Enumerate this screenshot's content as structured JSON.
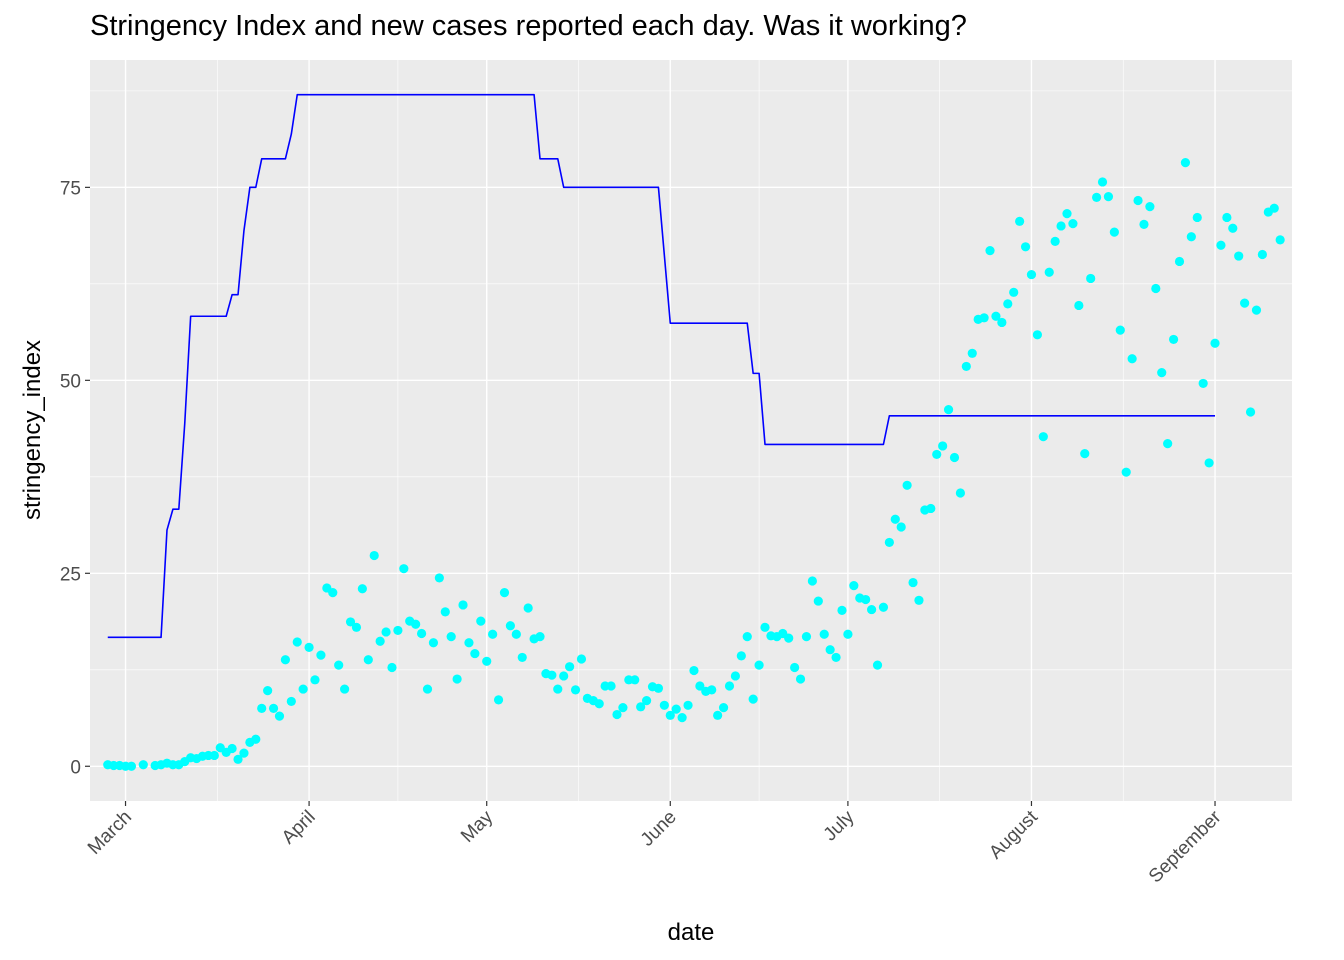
{
  "chart_data": {
    "type": "line",
    "title": "Stringency Index and new cases reported each day. Was it working?",
    "xlabel": "date",
    "ylabel": "stringency_index",
    "x_type": "date",
    "xlim": [
      "2020-02-24",
      "2020-09-14"
    ],
    "ylim": [
      -4.5,
      91.5
    ],
    "y_ticks": [
      0,
      25,
      50,
      75
    ],
    "x_ticks": [
      {
        "date": "2020-03-01",
        "label": "March"
      },
      {
        "date": "2020-04-01",
        "label": "April"
      },
      {
        "date": "2020-05-01",
        "label": "May"
      },
      {
        "date": "2020-06-01",
        "label": "June"
      },
      {
        "date": "2020-07-01",
        "label": "July"
      },
      {
        "date": "2020-08-01",
        "label": "August"
      },
      {
        "date": "2020-09-01",
        "label": "September"
      }
    ],
    "grid": true,
    "background": "#ebebeb",
    "legend": "none",
    "series": [
      {
        "kind": "line",
        "color": "#0000ff",
        "points": [
          [
            "2020-02-27",
            16.7
          ],
          [
            "2020-03-07",
            16.7
          ],
          [
            "2020-03-08",
            30.6
          ],
          [
            "2020-03-09",
            33.3
          ],
          [
            "2020-03-10",
            33.3
          ],
          [
            "2020-03-11",
            44.4
          ],
          [
            "2020-03-12",
            58.3
          ],
          [
            "2020-03-18",
            58.3
          ],
          [
            "2020-03-19",
            61.1
          ],
          [
            "2020-03-20",
            61.1
          ],
          [
            "2020-03-21",
            69.4
          ],
          [
            "2020-03-22",
            75.0
          ],
          [
            "2020-03-23",
            75.0
          ],
          [
            "2020-03-24",
            78.7
          ],
          [
            "2020-03-28",
            78.7
          ],
          [
            "2020-03-29",
            81.9
          ],
          [
            "2020-03-30",
            87.0
          ],
          [
            "2020-05-09",
            87.0
          ],
          [
            "2020-05-10",
            78.7
          ],
          [
            "2020-05-13",
            78.7
          ],
          [
            "2020-05-14",
            75.0
          ],
          [
            "2020-05-30",
            75.0
          ],
          [
            "2020-06-01",
            57.4
          ],
          [
            "2020-06-14",
            57.4
          ],
          [
            "2020-06-15",
            50.9
          ],
          [
            "2020-06-16",
            50.9
          ],
          [
            "2020-06-17",
            41.7
          ],
          [
            "2020-07-07",
            41.7
          ],
          [
            "2020-07-08",
            45.4
          ],
          [
            "2020-09-01",
            45.4
          ]
        ]
      },
      {
        "kind": "points",
        "color": "#00ffff",
        "points": [
          [
            "2020-02-27",
            0.2
          ],
          [
            "2020-02-28",
            0.1
          ],
          [
            "2020-02-29",
            0.1
          ],
          [
            "2020-03-01",
            0.0
          ],
          [
            "2020-03-02",
            0.0
          ],
          [
            "2020-03-04",
            0.2
          ],
          [
            "2020-03-06",
            0.1
          ],
          [
            "2020-03-07",
            0.2
          ],
          [
            "2020-03-08",
            0.4
          ],
          [
            "2020-03-09",
            0.2
          ],
          [
            "2020-03-10",
            0.2
          ],
          [
            "2020-03-11",
            0.6
          ],
          [
            "2020-03-12",
            1.1
          ],
          [
            "2020-03-13",
            1.0
          ],
          [
            "2020-03-14",
            1.3
          ],
          [
            "2020-03-15",
            1.4
          ],
          [
            "2020-03-16",
            1.4
          ],
          [
            "2020-03-17",
            2.4
          ],
          [
            "2020-03-18",
            1.8
          ],
          [
            "2020-03-19",
            2.3
          ],
          [
            "2020-03-20",
            0.9
          ],
          [
            "2020-03-21",
            1.7
          ],
          [
            "2020-03-22",
            3.1
          ],
          [
            "2020-03-23",
            3.5
          ],
          [
            "2020-03-24",
            7.5
          ],
          [
            "2020-03-25",
            9.8
          ],
          [
            "2020-03-26",
            7.5
          ],
          [
            "2020-03-27",
            6.5
          ],
          [
            "2020-03-28",
            13.8
          ],
          [
            "2020-03-29",
            8.4
          ],
          [
            "2020-03-30",
            16.1
          ],
          [
            "2020-03-31",
            10.0
          ],
          [
            "2020-04-01",
            15.4
          ],
          [
            "2020-04-02",
            11.2
          ],
          [
            "2020-04-03",
            14.4
          ],
          [
            "2020-04-04",
            23.1
          ],
          [
            "2020-04-05",
            22.5
          ],
          [
            "2020-04-06",
            13.1
          ],
          [
            "2020-04-07",
            10.0
          ],
          [
            "2020-04-08",
            18.7
          ],
          [
            "2020-04-09",
            18.0
          ],
          [
            "2020-04-10",
            23.0
          ],
          [
            "2020-04-11",
            13.8
          ],
          [
            "2020-04-12",
            27.3
          ],
          [
            "2020-04-13",
            16.2
          ],
          [
            "2020-04-14",
            17.4
          ],
          [
            "2020-04-15",
            12.8
          ],
          [
            "2020-04-16",
            17.6
          ],
          [
            "2020-04-17",
            25.6
          ],
          [
            "2020-04-18",
            18.8
          ],
          [
            "2020-04-19",
            18.4
          ],
          [
            "2020-04-20",
            17.2
          ],
          [
            "2020-04-21",
            10.0
          ],
          [
            "2020-04-22",
            16.0
          ],
          [
            "2020-04-23",
            24.4
          ],
          [
            "2020-04-24",
            20.0
          ],
          [
            "2020-04-25",
            16.8
          ],
          [
            "2020-04-26",
            11.3
          ],
          [
            "2020-04-27",
            20.9
          ],
          [
            "2020-04-28",
            16.0
          ],
          [
            "2020-04-29",
            14.6
          ],
          [
            "2020-04-30",
            18.8
          ],
          [
            "2020-05-01",
            13.6
          ],
          [
            "2020-05-02",
            17.1
          ],
          [
            "2020-05-03",
            8.6
          ],
          [
            "2020-05-04",
            22.5
          ],
          [
            "2020-05-05",
            18.2
          ],
          [
            "2020-05-06",
            17.1
          ],
          [
            "2020-05-07",
            14.1
          ],
          [
            "2020-05-08",
            20.5
          ],
          [
            "2020-05-09",
            16.5
          ],
          [
            "2020-05-10",
            16.8
          ],
          [
            "2020-05-11",
            12.0
          ],
          [
            "2020-05-12",
            11.8
          ],
          [
            "2020-05-13",
            10.0
          ],
          [
            "2020-05-14",
            11.7
          ],
          [
            "2020-05-15",
            12.9
          ],
          [
            "2020-05-16",
            9.9
          ],
          [
            "2020-05-17",
            13.9
          ],
          [
            "2020-05-18",
            8.8
          ],
          [
            "2020-05-19",
            8.5
          ],
          [
            "2020-05-20",
            8.1
          ],
          [
            "2020-05-21",
            10.4
          ],
          [
            "2020-05-22",
            10.4
          ],
          [
            "2020-05-23",
            6.7
          ],
          [
            "2020-05-24",
            7.6
          ],
          [
            "2020-05-25",
            11.2
          ],
          [
            "2020-05-26",
            11.2
          ],
          [
            "2020-05-27",
            7.7
          ],
          [
            "2020-05-28",
            8.5
          ],
          [
            "2020-05-29",
            10.3
          ],
          [
            "2020-05-30",
            10.1
          ],
          [
            "2020-05-31",
            7.9
          ],
          [
            "2020-06-01",
            6.6
          ],
          [
            "2020-06-02",
            7.4
          ],
          [
            "2020-06-03",
            6.3
          ],
          [
            "2020-06-04",
            7.9
          ],
          [
            "2020-06-05",
            12.4
          ],
          [
            "2020-06-06",
            10.4
          ],
          [
            "2020-06-07",
            9.7
          ],
          [
            "2020-06-08",
            9.9
          ],
          [
            "2020-06-09",
            6.6
          ],
          [
            "2020-06-10",
            7.6
          ],
          [
            "2020-06-11",
            10.4
          ],
          [
            "2020-06-12",
            11.7
          ],
          [
            "2020-06-13",
            14.3
          ],
          [
            "2020-06-14",
            16.8
          ],
          [
            "2020-06-15",
            8.7
          ],
          [
            "2020-06-16",
            13.1
          ],
          [
            "2020-06-17",
            18.0
          ],
          [
            "2020-06-18",
            16.9
          ],
          [
            "2020-06-19",
            16.8
          ],
          [
            "2020-06-20",
            17.2
          ],
          [
            "2020-06-21",
            16.6
          ],
          [
            "2020-06-22",
            12.8
          ],
          [
            "2020-06-23",
            11.3
          ],
          [
            "2020-06-24",
            16.8
          ],
          [
            "2020-06-25",
            24.0
          ],
          [
            "2020-06-26",
            21.4
          ],
          [
            "2020-06-27",
            17.1
          ],
          [
            "2020-06-28",
            15.1
          ],
          [
            "2020-06-29",
            14.1
          ],
          [
            "2020-06-30",
            20.2
          ],
          [
            "2020-07-01",
            17.1
          ],
          [
            "2020-07-02",
            23.4
          ],
          [
            "2020-07-03",
            21.8
          ],
          [
            "2020-07-04",
            21.6
          ],
          [
            "2020-07-05",
            20.3
          ],
          [
            "2020-07-06",
            13.1
          ],
          [
            "2020-07-07",
            20.6
          ],
          [
            "2020-07-08",
            29.0
          ],
          [
            "2020-07-09",
            32.0
          ],
          [
            "2020-07-10",
            31.0
          ],
          [
            "2020-07-11",
            36.4
          ],
          [
            "2020-07-12",
            23.8
          ],
          [
            "2020-07-13",
            21.5
          ],
          [
            "2020-07-14",
            33.2
          ],
          [
            "2020-07-15",
            33.4
          ],
          [
            "2020-07-16",
            40.4
          ],
          [
            "2020-07-17",
            41.5
          ],
          [
            "2020-07-18",
            46.2
          ],
          [
            "2020-07-19",
            40.0
          ],
          [
            "2020-07-20",
            35.4
          ],
          [
            "2020-07-21",
            51.8
          ],
          [
            "2020-07-22",
            53.5
          ],
          [
            "2020-07-23",
            57.9
          ],
          [
            "2020-07-24",
            58.1
          ],
          [
            "2020-07-25",
            66.8
          ],
          [
            "2020-07-26",
            58.3
          ],
          [
            "2020-07-27",
            57.5
          ],
          [
            "2020-07-28",
            59.9
          ],
          [
            "2020-07-29",
            61.4
          ],
          [
            "2020-07-30",
            70.6
          ],
          [
            "2020-07-31",
            67.3
          ],
          [
            "2020-08-01",
            63.7
          ],
          [
            "2020-08-02",
            55.9
          ],
          [
            "2020-08-03",
            42.7
          ],
          [
            "2020-08-04",
            64.0
          ],
          [
            "2020-08-05",
            68.0
          ],
          [
            "2020-08-06",
            70.0
          ],
          [
            "2020-08-07",
            71.6
          ],
          [
            "2020-08-08",
            70.3
          ],
          [
            "2020-08-09",
            59.7
          ],
          [
            "2020-08-10",
            40.5
          ],
          [
            "2020-08-11",
            63.2
          ],
          [
            "2020-08-12",
            73.7
          ],
          [
            "2020-08-13",
            75.7
          ],
          [
            "2020-08-14",
            73.8
          ],
          [
            "2020-08-15",
            69.2
          ],
          [
            "2020-08-16",
            56.5
          ],
          [
            "2020-08-17",
            38.1
          ],
          [
            "2020-08-18",
            52.8
          ],
          [
            "2020-08-19",
            73.3
          ],
          [
            "2020-08-20",
            70.2
          ],
          [
            "2020-08-21",
            72.5
          ],
          [
            "2020-08-22",
            61.9
          ],
          [
            "2020-08-23",
            51.0
          ],
          [
            "2020-08-24",
            41.8
          ],
          [
            "2020-08-25",
            55.3
          ],
          [
            "2020-08-26",
            65.4
          ],
          [
            "2020-08-27",
            78.2
          ],
          [
            "2020-08-28",
            68.6
          ],
          [
            "2020-08-29",
            71.1
          ],
          [
            "2020-08-30",
            49.6
          ],
          [
            "2020-08-31",
            39.3
          ],
          [
            "2020-09-01",
            54.8
          ],
          [
            "2020-09-02",
            67.5
          ],
          [
            "2020-09-03",
            71.1
          ],
          [
            "2020-09-04",
            69.7
          ],
          [
            "2020-09-05",
            66.1
          ],
          [
            "2020-09-06",
            60.0
          ],
          [
            "2020-09-07",
            45.9
          ],
          [
            "2020-09-08",
            59.1
          ],
          [
            "2020-09-09",
            66.3
          ],
          [
            "2020-09-10",
            71.8
          ],
          [
            "2020-09-11",
            72.3
          ],
          [
            "2020-09-12",
            68.2
          ]
        ]
      }
    ]
  }
}
